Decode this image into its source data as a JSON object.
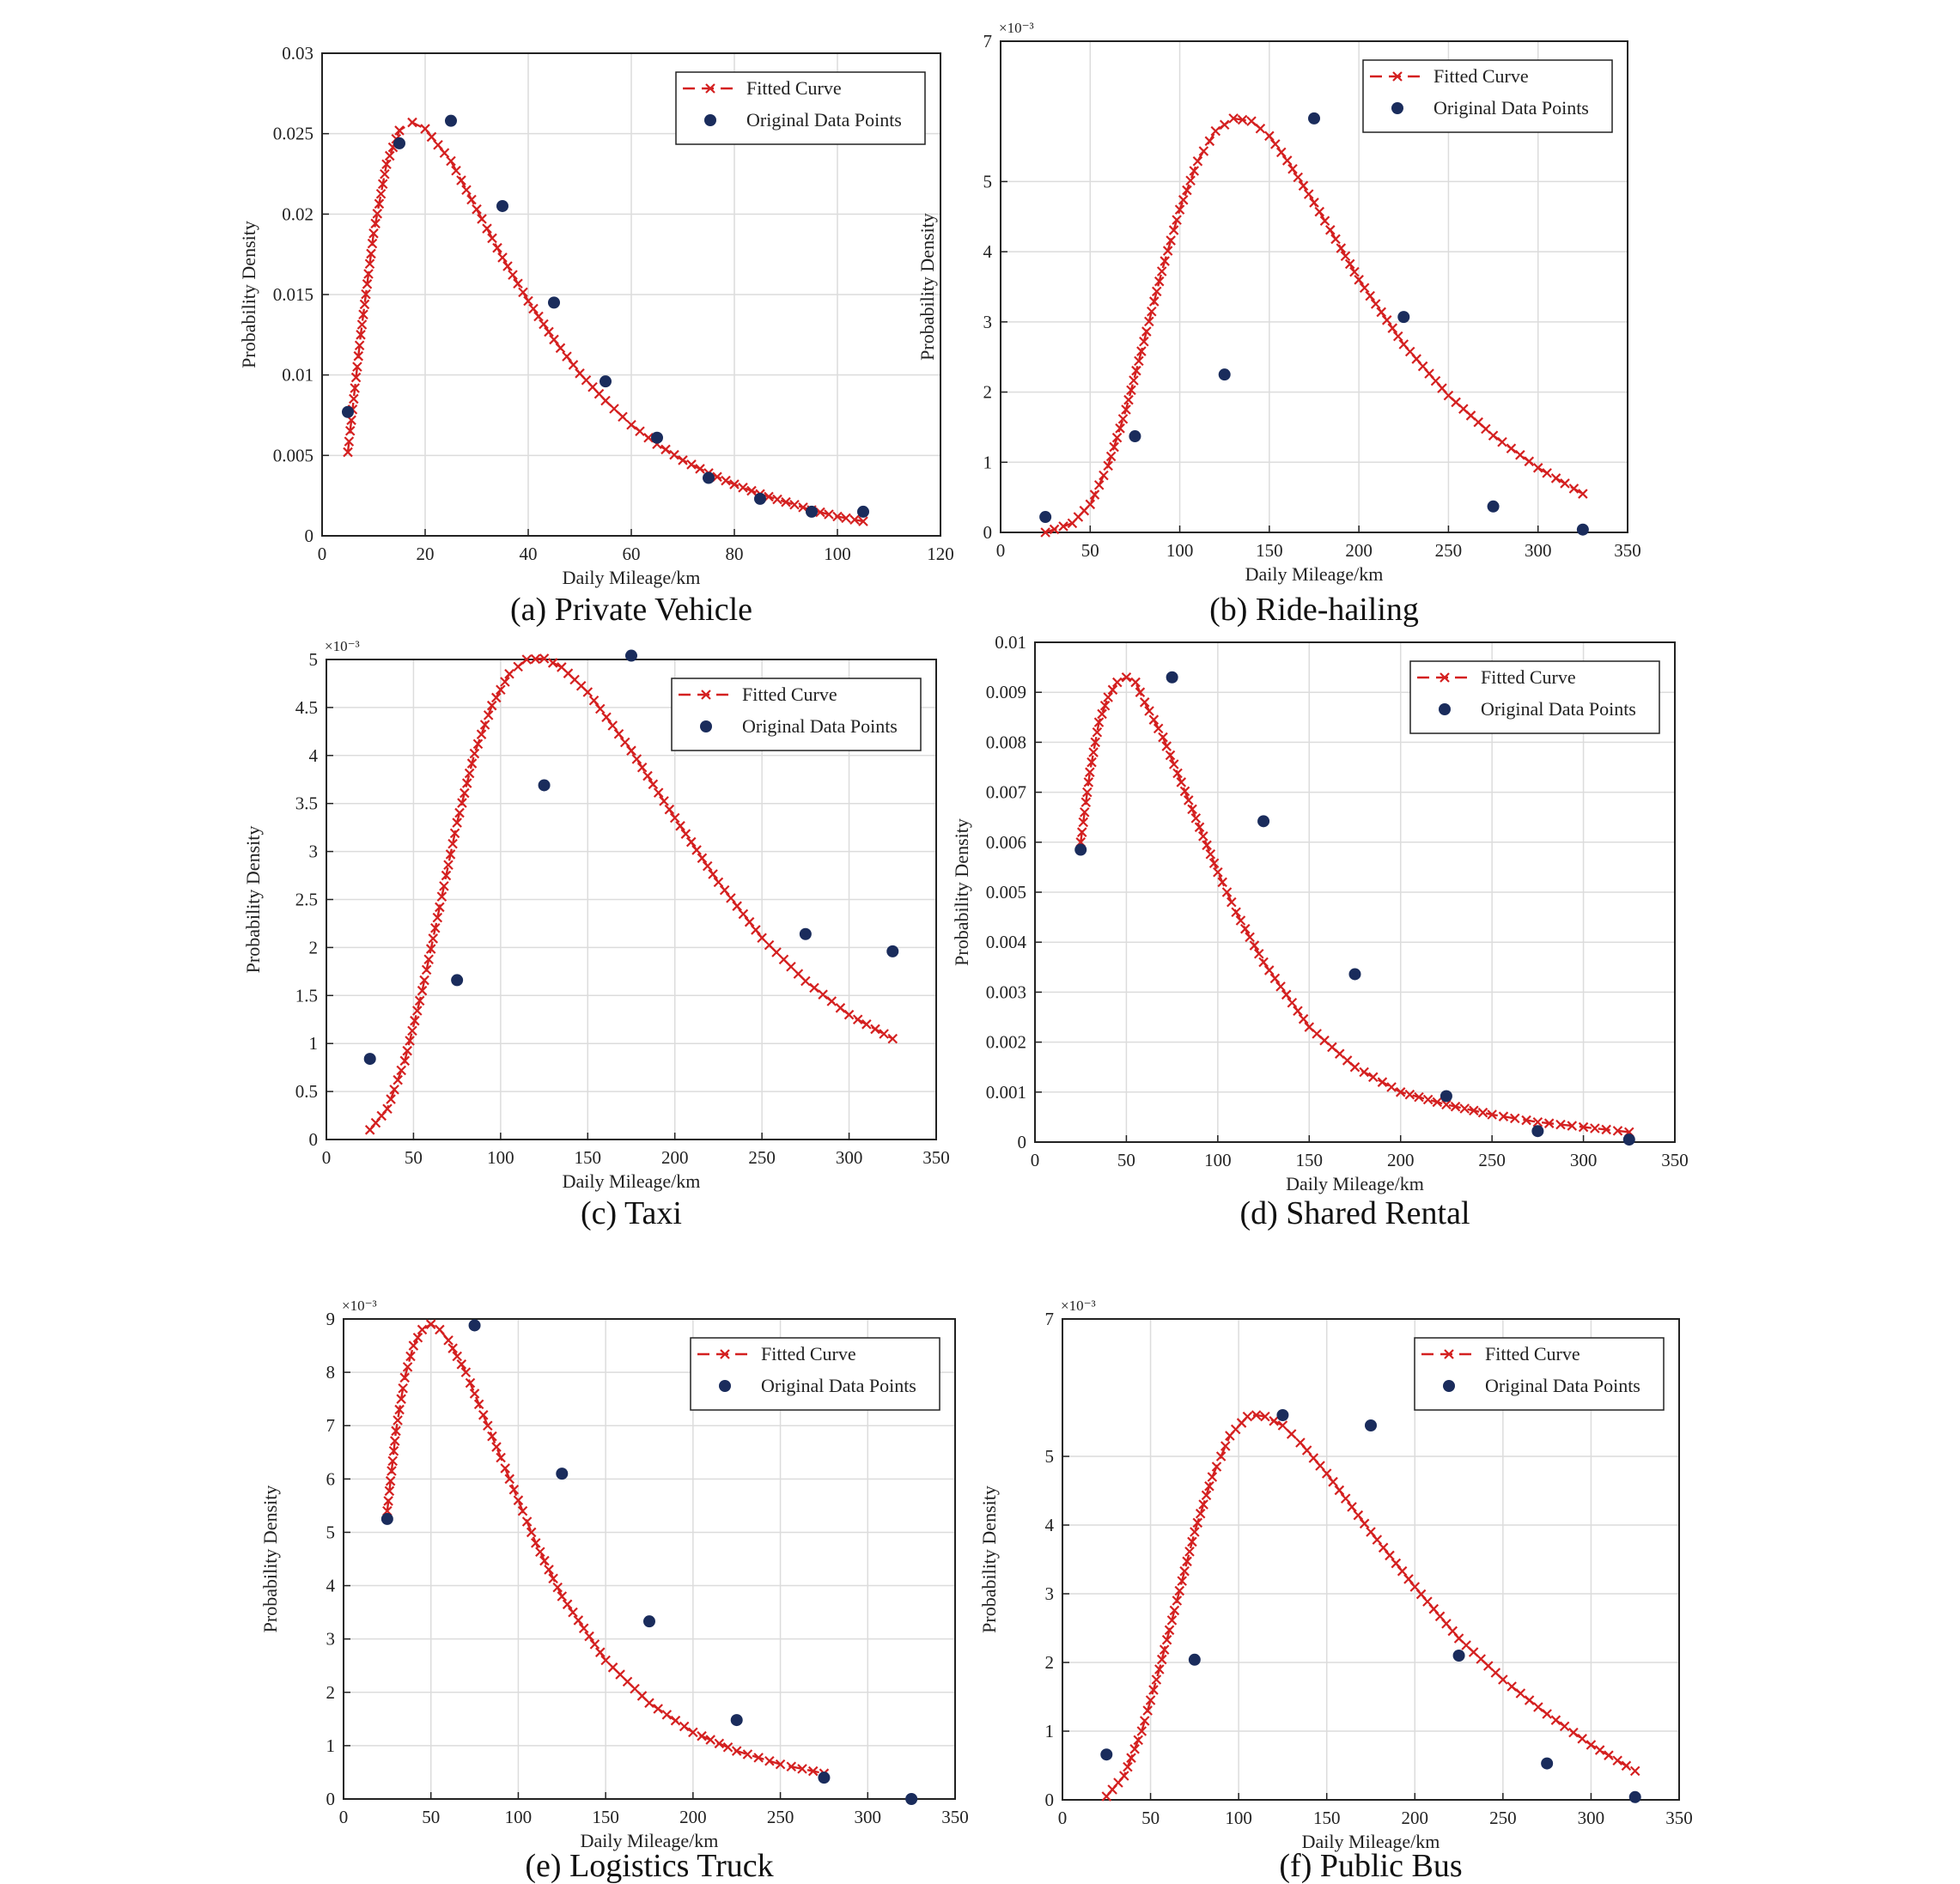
{
  "chart_data": [
    {
      "id": "a",
      "type": "line",
      "caption": "(a) Private Vehicle",
      "xlabel": "Daily Mileage/km",
      "ylabel": "Probability Density",
      "exponent_label": "",
      "xlim": [
        0,
        120
      ],
      "ylim": [
        0,
        0.03
      ],
      "xticks": [
        0,
        20,
        40,
        60,
        80,
        100,
        120
      ],
      "xtick_labels": [
        "0",
        "20",
        "40",
        "60",
        "80",
        "100",
        "120"
      ],
      "yticks": [
        0,
        0.005,
        0.01,
        0.015,
        0.02,
        0.025,
        0.03
      ],
      "ytick_labels": [
        "0",
        "0.005",
        "0.01",
        "0.015",
        "0.02",
        "0.025",
        "0.03"
      ],
      "grid": true,
      "legend_position": "top-right",
      "series": [
        {
          "name": "Fitted Curve",
          "style": "dashed-red-x",
          "x": [
            5,
            7.5,
            10,
            12.5,
            15,
            17.5,
            20,
            25,
            30,
            35,
            40,
            45,
            50,
            55,
            60,
            65,
            70,
            75,
            80,
            85,
            90,
            95,
            100,
            105
          ],
          "y": [
            0.0052,
            0.0125,
            0.0188,
            0.0231,
            0.0252,
            0.0257,
            0.0253,
            0.0233,
            0.0203,
            0.0173,
            0.0146,
            0.0122,
            0.0101,
            0.0084,
            0.0069,
            0.0057,
            0.0047,
            0.0039,
            0.0032,
            0.0026,
            0.0021,
            0.0016,
            0.0012,
            0.0009
          ]
        },
        {
          "name": "Original Data Points",
          "style": "navy-dot",
          "x": [
            5,
            15,
            25,
            35,
            45,
            55,
            65,
            75,
            85,
            95,
            105
          ],
          "y": [
            0.0077,
            0.0244,
            0.0258,
            0.0205,
            0.0145,
            0.0096,
            0.0061,
            0.0036,
            0.0023,
            0.0015,
            0.0015
          ]
        }
      ]
    },
    {
      "id": "b",
      "type": "line",
      "caption": "(b) Ride-hailing",
      "xlabel": "Daily Mileage/km",
      "ylabel": "Probability Density",
      "exponent_label": "×10⁻³",
      "xlim": [
        0,
        350
      ],
      "ylim": [
        0,
        7
      ],
      "xticks": [
        0,
        50,
        100,
        150,
        200,
        250,
        300,
        350
      ],
      "xtick_labels": [
        "0",
        "50",
        "100",
        "150",
        "200",
        "250",
        "300",
        "350"
      ],
      "yticks": [
        0,
        1,
        2,
        3,
        4,
        5,
        7
      ],
      "ytick_labels": [
        "0",
        "1",
        "2",
        "3",
        "4",
        "5",
        "7"
      ],
      "grid": true,
      "legend_position": "top-right",
      "series": [
        {
          "name": "Fitted Curve",
          "style": "dashed-red-x",
          "x": [
            25,
            40,
            50,
            60,
            70,
            80,
            90,
            100,
            110,
            120,
            130,
            140,
            150,
            160,
            175,
            190,
            200,
            225,
            250,
            275,
            300,
            325
          ],
          "y": [
            0.0,
            0.13,
            0.4,
            0.95,
            1.75,
            2.72,
            3.72,
            4.6,
            5.29,
            5.72,
            5.9,
            5.86,
            5.65,
            5.3,
            4.7,
            4.05,
            3.6,
            2.68,
            1.95,
            1.38,
            0.92,
            0.55
          ]
        },
        {
          "name": "Original Data Points",
          "style": "navy-dot",
          "x": [
            25,
            75,
            125,
            175,
            225,
            275,
            325
          ],
          "y": [
            0.22,
            1.37,
            2.25,
            5.9,
            3.07,
            0.37,
            0.04
          ]
        }
      ]
    },
    {
      "id": "c",
      "type": "line",
      "caption": "(c) Taxi",
      "xlabel": "Daily Mileage/km",
      "ylabel": "Probability Density",
      "exponent_label": "×10⁻³",
      "xlim": [
        0,
        350
      ],
      "ylim": [
        0,
        5
      ],
      "xticks": [
        0,
        50,
        100,
        150,
        200,
        250,
        300,
        350
      ],
      "xtick_labels": [
        "0",
        "50",
        "100",
        "150",
        "200",
        "250",
        "300",
        "350"
      ],
      "yticks": [
        0,
        0.5,
        1,
        1.5,
        2,
        2.5,
        3,
        3.5,
        4,
        4.5,
        5
      ],
      "ytick_labels": [
        "0",
        "0.5",
        "1",
        "1.5",
        "2",
        "2.5",
        "3",
        "3.5",
        "4",
        "4.5",
        "5"
      ],
      "grid": true,
      "legend_position": "top-right",
      "series": [
        {
          "name": "Fitted Curve",
          "style": "dashed-red-x",
          "x": [
            25,
            35,
            45,
            55,
            65,
            75,
            85,
            95,
            105,
            115,
            125,
            135,
            150,
            175,
            200,
            225,
            250,
            275,
            300,
            325
          ],
          "y": [
            0.1,
            0.32,
            0.82,
            1.55,
            2.42,
            3.3,
            4.02,
            4.52,
            4.85,
            5.0,
            5.01,
            4.92,
            4.66,
            4.05,
            3.35,
            2.68,
            2.1,
            1.65,
            1.3,
            1.05
          ]
        },
        {
          "name": "Original Data Points",
          "style": "navy-dot",
          "x": [
            25,
            75,
            125,
            175,
            275,
            325
          ],
          "y": [
            0.84,
            1.66,
            3.69,
            5.04,
            2.14,
            1.96
          ]
        }
      ]
    },
    {
      "id": "d",
      "type": "line",
      "caption": "(d) Shared Rental",
      "xlabel": "Daily Mileage/km",
      "ylabel": "Probability Density",
      "exponent_label": "",
      "xlim": [
        0,
        350
      ],
      "ylim": [
        0,
        0.01
      ],
      "xticks": [
        0,
        50,
        100,
        150,
        200,
        250,
        300,
        350
      ],
      "xtick_labels": [
        "0",
        "50",
        "100",
        "150",
        "200",
        "250",
        "300",
        "350"
      ],
      "yticks": [
        0,
        0.001,
        0.002,
        0.003,
        0.004,
        0.005,
        0.006,
        0.007,
        0.008,
        0.009,
        0.01
      ],
      "ytick_labels": [
        "0",
        "0.001",
        "0.002",
        "0.003",
        "0.004",
        "0.005",
        "0.006",
        "0.007",
        "0.008",
        "0.009",
        "0.01"
      ],
      "grid": true,
      "legend_position": "top-right",
      "series": [
        {
          "name": "Fitted Curve",
          "style": "dashed-red-x",
          "x": [
            25,
            30,
            35,
            40,
            45,
            50,
            55,
            60,
            70,
            80,
            90,
            100,
            110,
            125,
            150,
            175,
            200,
            225,
            250,
            275,
            300,
            325
          ],
          "y": [
            0.006,
            0.0074,
            0.0084,
            0.0089,
            0.0092,
            0.0093,
            0.0092,
            0.0088,
            0.0081,
            0.0072,
            0.0063,
            0.0054,
            0.0046,
            0.0036,
            0.0023,
            0.0015,
            0.001,
            0.00075,
            0.00055,
            0.0004,
            0.0003,
            0.0002
          ]
        },
        {
          "name": "Original Data Points",
          "style": "navy-dot",
          "x": [
            25,
            75,
            125,
            175,
            225,
            275,
            325
          ],
          "y": [
            0.00585,
            0.0093,
            0.00642,
            0.00336,
            0.00092,
            0.00022,
            5e-05
          ]
        }
      ]
    },
    {
      "id": "e",
      "type": "line",
      "caption": "(e) Logistics Truck",
      "xlabel": "Daily Mileage/km",
      "ylabel": "Probability Density",
      "exponent_label": "×10⁻³",
      "xlim": [
        0,
        350
      ],
      "ylim": [
        0,
        9
      ],
      "xticks": [
        0,
        50,
        100,
        150,
        200,
        250,
        300,
        350
      ],
      "xtick_labels": [
        "0",
        "50",
        "100",
        "150",
        "200",
        "250",
        "300",
        "350"
      ],
      "yticks": [
        0,
        1,
        2,
        3,
        4,
        5,
        6,
        7,
        8,
        9
      ],
      "ytick_labels": [
        "0",
        "1",
        "2",
        "3",
        "4",
        "5",
        "6",
        "7",
        "8",
        "9"
      ],
      "grid": true,
      "legend_position": "top-right",
      "series": [
        {
          "name": "Fitted Curve",
          "style": "dashed-red-x",
          "x": [
            25,
            30,
            35,
            40,
            45,
            50,
            55,
            60,
            70,
            80,
            90,
            100,
            110,
            125,
            150,
            175,
            200,
            225,
            250,
            275
          ],
          "y": [
            5.4,
            6.9,
            7.9,
            8.5,
            8.8,
            8.9,
            8.8,
            8.6,
            8.0,
            7.2,
            6.4,
            5.6,
            4.8,
            3.8,
            2.6,
            1.8,
            1.25,
            0.9,
            0.65,
            0.48
          ]
        },
        {
          "name": "Original Data Points",
          "style": "navy-dot",
          "x": [
            25,
            75,
            125,
            175,
            225,
            275,
            325
          ],
          "y": [
            5.25,
            8.88,
            6.1,
            3.33,
            1.48,
            0.4,
            0.0
          ]
        }
      ]
    },
    {
      "id": "f",
      "type": "line",
      "caption": "(f) Public Bus",
      "xlabel": "Daily Mileage/km",
      "ylabel": "Probability Density",
      "exponent_label": "×10⁻³",
      "xlim": [
        0,
        350
      ],
      "ylim": [
        0,
        7
      ],
      "xticks": [
        0,
        50,
        100,
        150,
        200,
        250,
        300,
        350
      ],
      "xtick_labels": [
        "0",
        "50",
        "100",
        "150",
        "200",
        "250",
        "300",
        "350"
      ],
      "yticks": [
        0,
        1,
        2,
        3,
        4,
        5,
        7
      ],
      "ytick_labels": [
        "0",
        "1",
        "2",
        "3",
        "4",
        "5",
        "7"
      ],
      "grid": true,
      "legend_position": "top-right",
      "series": [
        {
          "name": "Fitted Curve",
          "style": "dashed-red-x",
          "x": [
            25,
            35,
            45,
            55,
            65,
            75,
            85,
            95,
            105,
            110,
            115,
            125,
            135,
            150,
            175,
            200,
            225,
            250,
            275,
            300,
            325
          ],
          "y": [
            0.05,
            0.35,
            1.0,
            1.9,
            2.9,
            3.9,
            4.7,
            5.3,
            5.58,
            5.6,
            5.58,
            5.45,
            5.2,
            4.75,
            3.9,
            3.1,
            2.35,
            1.75,
            1.25,
            0.8,
            0.42
          ]
        },
        {
          "name": "Original Data Points",
          "style": "navy-dot",
          "x": [
            25,
            75,
            125,
            175,
            225,
            275,
            325
          ],
          "y": [
            0.66,
            2.04,
            5.6,
            5.45,
            2.1,
            0.53,
            0.04
          ]
        }
      ]
    }
  ]
}
